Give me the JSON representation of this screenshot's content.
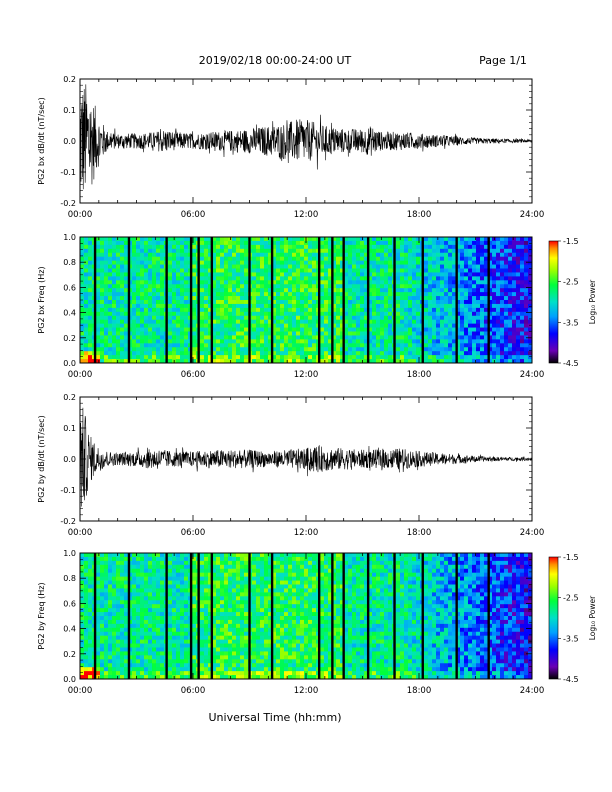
{
  "header": {
    "title": "2019/02/18  00:00-24:00 UT",
    "page": "Page 1/1"
  },
  "x_axis": {
    "ticks": [
      "00:00",
      "06:00",
      "12:00",
      "18:00",
      "24:00"
    ],
    "label": "Universal Time (hh:mm)"
  },
  "colorbar": {
    "ticks": [
      "-1.5",
      "-2.5",
      "-3.5",
      "-4.5"
    ],
    "label": "Log₁₀ Power"
  },
  "chart_data": [
    {
      "type": "line",
      "ylabel": "PG2 bx dB/dt (nT/sec)",
      "xlim": [
        0,
        24
      ],
      "ylim": [
        -0.2,
        0.2
      ],
      "yticks": [
        "0.2",
        "0.1",
        "0.0",
        "-0.1",
        "-0.2"
      ],
      "x": [
        0,
        0.25,
        0.5,
        1,
        1.5,
        2,
        3,
        4,
        4.5,
        5,
        6,
        7,
        8,
        9,
        10,
        11,
        11.5,
        12,
        13,
        14,
        15,
        15.5,
        16,
        17,
        18,
        19,
        20,
        21,
        22,
        23,
        24
      ],
      "amplitude": [
        0.2,
        0.2,
        0.17,
        0.08,
        0.03,
        0.025,
        0.025,
        0.03,
        0.04,
        0.03,
        0.025,
        0.03,
        0.035,
        0.04,
        0.05,
        0.06,
        0.07,
        0.07,
        0.05,
        0.04,
        0.04,
        0.05,
        0.03,
        0.03,
        0.025,
        0.02,
        0.015,
        0.01,
        0.008,
        0.006,
        0.005
      ]
    },
    {
      "type": "heatmap",
      "ylabel": "PG2 bx Freq (Hz)",
      "xlim": [
        0,
        24
      ],
      "ylim": [
        0,
        1.0
      ],
      "yticks": [
        "1.0",
        "0.8",
        "0.6",
        "0.4",
        "0.2",
        "0.0"
      ],
      "zlim": [
        -4.5,
        -1.5
      ],
      "data_gaps_hours": [
        0.8,
        2.6,
        4.6,
        5.9,
        6.3,
        7.0,
        9.0,
        10.2,
        12.7,
        13.4,
        14.0,
        15.3,
        16.7,
        18.2,
        20.0,
        21.7
      ]
    },
    {
      "type": "line",
      "ylabel": "PG2 by dB/dt (nT/sec)",
      "xlim": [
        0,
        24
      ],
      "ylim": [
        -0.2,
        0.2
      ],
      "yticks": [
        "0.2",
        "0.1",
        "0.0",
        "-0.1",
        "-0.2"
      ],
      "x": [
        0,
        0.25,
        0.5,
        1,
        1.5,
        2,
        3,
        4,
        5,
        6,
        7,
        8,
        9,
        10,
        11,
        12,
        12.5,
        13,
        14,
        15,
        16,
        17,
        18,
        19,
        20,
        21,
        22,
        23,
        24
      ],
      "amplitude": [
        0.2,
        0.15,
        0.08,
        0.04,
        0.025,
        0.02,
        0.025,
        0.035,
        0.025,
        0.025,
        0.03,
        0.03,
        0.03,
        0.025,
        0.03,
        0.035,
        0.045,
        0.04,
        0.035,
        0.03,
        0.03,
        0.035,
        0.025,
        0.02,
        0.015,
        0.01,
        0.007,
        0.006,
        0.005
      ]
    },
    {
      "type": "heatmap",
      "ylabel": "PG2 by Freq (Hz)",
      "xlim": [
        0,
        24
      ],
      "ylim": [
        0,
        1.0
      ],
      "yticks": [
        "1.0",
        "0.8",
        "0.6",
        "0.4",
        "0.2",
        "0.0"
      ],
      "zlim": [
        -4.5,
        -1.5
      ],
      "data_gaps_hours": [
        0.8,
        2.6,
        4.6,
        5.9,
        6.3,
        7.0,
        9.0,
        10.2,
        12.7,
        13.4,
        14.0,
        15.3,
        16.7,
        18.2,
        20.0,
        21.7
      ]
    }
  ]
}
